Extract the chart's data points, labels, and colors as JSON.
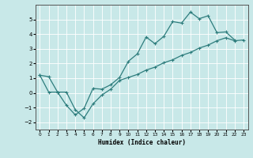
{
  "xlabel": "Humidex (Indice chaleur)",
  "background_color": "#c8e8e8",
  "line_color": "#2e7d7d",
  "grid_color": "#ffffff",
  "xlim": [
    -0.5,
    23.5
  ],
  "ylim": [
    -2.5,
    6.0
  ],
  "x_upper": [
    0,
    1,
    2,
    3,
    4,
    5,
    6,
    7,
    8,
    9,
    10,
    11,
    12,
    13,
    14,
    15,
    16,
    17,
    18,
    19,
    20,
    21,
    22
  ],
  "y_upper": [
    1.2,
    1.1,
    0.05,
    -0.85,
    -1.5,
    -1.05,
    0.3,
    0.25,
    0.55,
    1.05,
    2.15,
    2.65,
    3.8,
    3.35,
    3.85,
    4.85,
    4.75,
    5.5,
    5.05,
    5.25,
    4.1,
    4.15,
    3.6
  ],
  "x_lower": [
    0,
    1,
    2,
    3,
    4,
    5,
    6,
    7,
    8,
    9,
    10,
    11,
    12,
    13,
    14,
    15,
    16,
    17,
    18,
    19,
    20,
    21,
    22,
    23
  ],
  "y_lower": [
    1.2,
    0.05,
    0.05,
    0.05,
    -1.15,
    -1.7,
    -0.75,
    -0.15,
    0.25,
    0.85,
    1.05,
    1.25,
    1.55,
    1.75,
    2.05,
    2.25,
    2.55,
    2.75,
    3.05,
    3.25,
    3.55,
    3.75,
    3.55,
    3.6
  ],
  "yticks": [
    -2,
    -1,
    0,
    1,
    2,
    3,
    4,
    5
  ],
  "xticks": [
    0,
    1,
    2,
    3,
    4,
    5,
    6,
    7,
    8,
    9,
    10,
    11,
    12,
    13,
    14,
    15,
    16,
    17,
    18,
    19,
    20,
    21,
    22,
    23
  ]
}
